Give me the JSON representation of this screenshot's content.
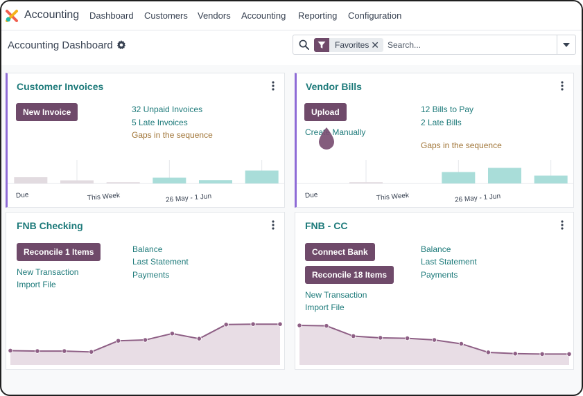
{
  "nav": {
    "app_name": "Accounting",
    "menu": [
      "Dashboard",
      "Customers",
      "Vendors",
      "Accounting",
      "Reporting",
      "Configuration"
    ]
  },
  "control": {
    "title": "Accounting Dashboard",
    "facet_label": "Favorites",
    "search_placeholder": "Search..."
  },
  "colors": {
    "brand": "#6f4a6a",
    "link": "#1d7a7a",
    "warning": "#a07436",
    "accent_border": "#8e6bd6",
    "bar_past": "#e2dbe0",
    "bar_future": "#a9ddd9",
    "line": "#8e5f85",
    "area": "#e8dde5"
  },
  "cards": {
    "customer_invoices": {
      "title": "Customer Invoices",
      "button": "New Invoice",
      "links": [
        "32 Unpaid Invoices",
        "5 Late Invoices"
      ],
      "warning_link": "Gaps in the sequence",
      "axis_labels": [
        "Due",
        "This Week",
        "26 May - 1 Jun"
      ]
    },
    "vendor_bills": {
      "title": "Vendor Bills",
      "button": "Upload",
      "secondary_link": "Create Manually",
      "links": [
        "12 Bills to Pay",
        "2 Late Bills"
      ],
      "warning_link": "Gaps in the sequence",
      "axis_labels": [
        "Due",
        "This Week",
        "26 May - 1 Jun"
      ]
    },
    "fnb_checking": {
      "title": "FNB Checking",
      "button": "Reconcile 1 Items",
      "left_links": [
        "New Transaction",
        "Import File"
      ],
      "right_links": [
        "Balance",
        "Last Statement",
        "Payments"
      ]
    },
    "fnb_cc": {
      "title": "FNB - CC",
      "buttons": [
        "Connect Bank",
        "Reconcile 18 Items"
      ],
      "left_links": [
        "New Transaction",
        "Import File"
      ],
      "right_links": [
        "Balance",
        "Last Statement",
        "Payments"
      ]
    }
  },
  "chart_data": [
    {
      "type": "bar",
      "name": "customer_invoices",
      "categories": [
        "Due",
        "",
        "This Week",
        "",
        "26 May - 1 Jun",
        ""
      ],
      "values": [
        0.3,
        0.15,
        0.06,
        0.28,
        0.16,
        0.62
      ],
      "future": [
        false,
        false,
        false,
        true,
        true,
        true
      ]
    },
    {
      "type": "bar",
      "name": "vendor_bills",
      "categories": [
        "Due",
        "",
        "This Week",
        "",
        "26 May - 1 Jun",
        ""
      ],
      "values": [
        0.0,
        0.06,
        0.0,
        0.55,
        0.75,
        0.38
      ],
      "future": [
        false,
        false,
        false,
        true,
        true,
        true
      ]
    },
    {
      "type": "area",
      "name": "fnb_checking",
      "values": [
        0.3,
        0.29,
        0.29,
        0.27,
        0.53,
        0.55,
        0.7,
        0.58,
        0.91,
        0.92,
        0.92
      ]
    },
    {
      "type": "area",
      "name": "fnb_cc",
      "values": [
        0.89,
        0.88,
        0.64,
        0.6,
        0.59,
        0.55,
        0.46,
        0.26,
        0.23,
        0.22,
        0.22
      ]
    }
  ]
}
